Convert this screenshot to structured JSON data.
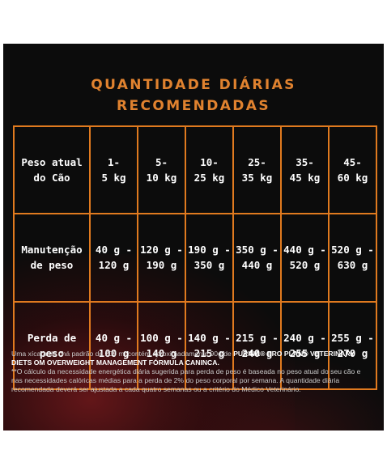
{
  "title": {
    "line1": "QUANTIDADE DIÁRIAS",
    "line2": "RECOMENDADAS"
  },
  "table": {
    "rows": [
      {
        "label": [
          "Peso atual",
          "do Cão"
        ],
        "cells": [
          [
            "1-",
            "5 kg"
          ],
          [
            "5-",
            "10 kg"
          ],
          [
            "10-",
            "25 kg"
          ],
          [
            "25-",
            "35 kg"
          ],
          [
            "35-",
            "45 kg"
          ],
          [
            "45-",
            "60 kg"
          ]
        ]
      },
      {
        "label": [
          "Manutenção",
          "de peso"
        ],
        "cells": [
          [
            "40 g -",
            "120 g"
          ],
          [
            "120 g -",
            "190 g"
          ],
          [
            "190 g -",
            "350 g"
          ],
          [
            "350 g -",
            "440 g"
          ],
          [
            "440 g -",
            "520 g"
          ],
          [
            "520 g -",
            "630 g"
          ]
        ]
      },
      {
        "label": [
          "Perda de",
          "peso"
        ],
        "cells": [
          [
            "40 g -",
            "100 g"
          ],
          [
            "100 g -",
            "140 g"
          ],
          [
            "140 g -",
            "215 g"
          ],
          [
            "215 g -",
            "240 g"
          ],
          [
            "240 g -",
            "255 g"
          ],
          [
            "255 g -",
            "270 g"
          ]
        ]
      }
    ]
  },
  "footnote": {
    "p1_pre": "Uma xícara de chá padrão de 200 ml contém aproximadamente 90g de ",
    "p1_bold": "PURINA® PRO PLAN® VETERINARY DIETS OM OVERWEIGHT MANAGEMENT FÓRMULA CANINCA.",
    "p2": "**O cálculo da necessidade energética diária sugerida para perda de peso é baseada no peso atual do seu cão e nas necessidades calóricas médias para a perda de 2% do peso corporal por semana. A quantidade diária recomendada deverá ser ajustada a cada quatro semanas ou a critério do Médico Veterinário."
  }
}
